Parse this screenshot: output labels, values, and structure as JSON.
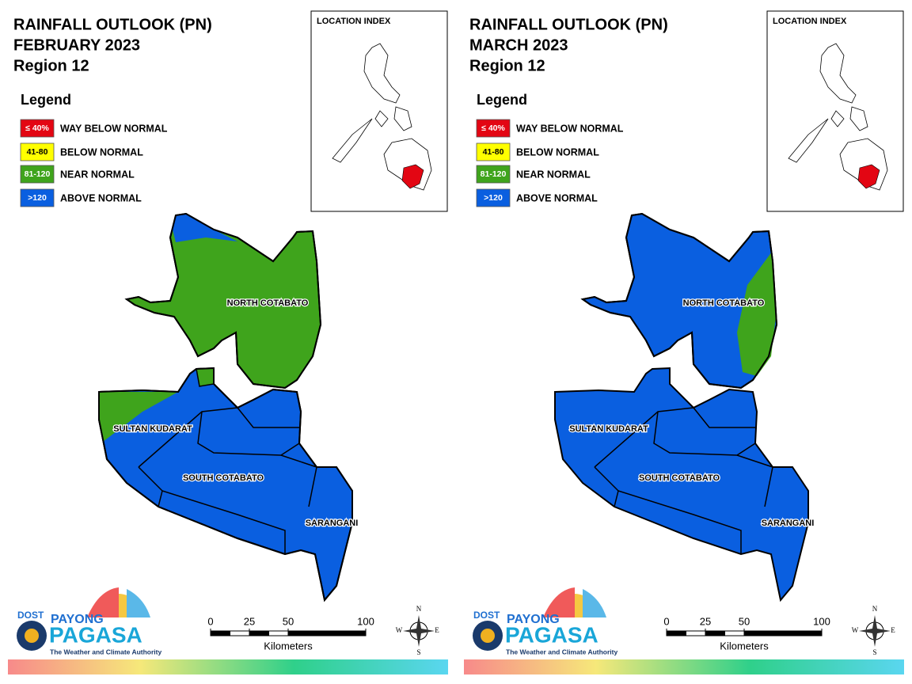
{
  "panels": [
    {
      "title": [
        "RAINFALL OUTLOOK (PN)",
        "FEBRUARY 2023",
        "Region 12"
      ],
      "legend": {
        "title": "Legend",
        "items": [
          {
            "label": "≤ 40%",
            "text": "WAY BELOW NORMAL",
            "color": "#e30613"
          },
          {
            "label": "41-80",
            "text": "BELOW NORMAL",
            "color": "#ffff00"
          },
          {
            "label": "81-120",
            "text": "NEAR NORMAL",
            "color": "#3fa41c"
          },
          {
            "label": ">120",
            "text": "ABOVE NORMAL",
            "color": "#0a5fe0"
          }
        ]
      },
      "index_title": "LOCATION INDEX",
      "provinces": [
        "NORTH COTABATO",
        "SULTAN KUDARAT",
        "SOUTH COTABATO",
        "SARANGANI"
      ],
      "scale": {
        "ticks": [
          0,
          25,
          50,
          100
        ],
        "unit": "Kilometers"
      },
      "compass": [
        "N",
        "E",
        "S",
        "W"
      ],
      "logo": [
        "DOST",
        "PAYONG",
        "PAGASA",
        "The Weather and Climate Authority"
      ]
    },
    {
      "title": [
        "RAINFALL OUTLOOK (PN)",
        "MARCH 2023",
        "Region 12"
      ],
      "legend": {
        "title": "Legend",
        "items": [
          {
            "label": "≤ 40%",
            "text": "WAY BELOW NORMAL",
            "color": "#e30613"
          },
          {
            "label": "41-80",
            "text": "BELOW NORMAL",
            "color": "#ffff00"
          },
          {
            "label": "81-120",
            "text": "NEAR NORMAL",
            "color": "#3fa41c"
          },
          {
            "label": ">120",
            "text": "ABOVE NORMAL",
            "color": "#0a5fe0"
          }
        ]
      },
      "index_title": "LOCATION INDEX",
      "provinces": [
        "NORTH COTABATO",
        "SULTAN KUDARAT",
        "SOUTH COTABATO",
        "SARANGANI"
      ],
      "scale": {
        "ticks": [
          0,
          25,
          50,
          100
        ],
        "unit": "Kilometers"
      },
      "compass": [
        "N",
        "E",
        "S",
        "W"
      ],
      "logo": [
        "DOST",
        "PAYONG",
        "PAGASA",
        "The Weather and Climate Authority"
      ]
    }
  ]
}
